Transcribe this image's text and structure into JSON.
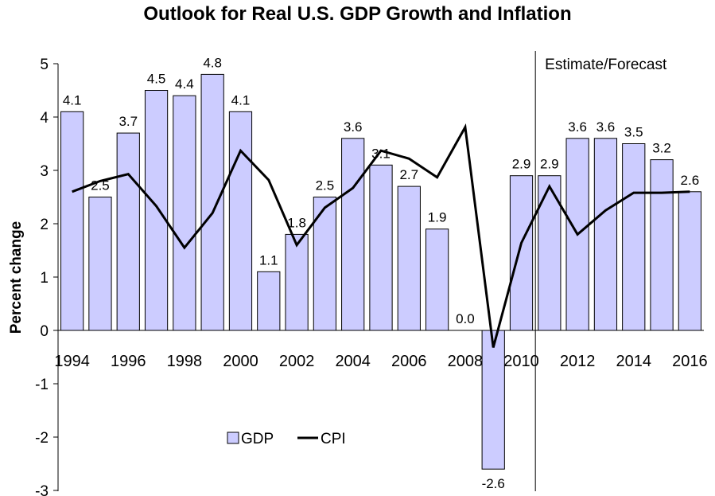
{
  "chart_data": {
    "type": "bar",
    "title": "Outlook for Real U.S. GDP Growth and Inflation",
    "ylabel": "Percent change",
    "xlabel": "",
    "ylim": [
      -3,
      5
    ],
    "yticks": [
      -3,
      -2,
      -1,
      0,
      1,
      2,
      3,
      4,
      5
    ],
    "x": [
      1994,
      1995,
      1996,
      1997,
      1998,
      1999,
      2000,
      2001,
      2002,
      2003,
      2004,
      2005,
      2006,
      2007,
      2008,
      2009,
      2010,
      2011,
      2012,
      2013,
      2014,
      2015,
      2016
    ],
    "xtick_labels": [
      "1994",
      "1996",
      "1998",
      "2000",
      "2002",
      "2004",
      "2006",
      "2008",
      "2010",
      "2012",
      "2014",
      "2016"
    ],
    "series": [
      {
        "name": "GDP",
        "kind": "bar",
        "color": "#ccccff",
        "values": [
          4.1,
          2.5,
          3.7,
          4.5,
          4.4,
          4.8,
          4.1,
          1.1,
          1.8,
          2.5,
          3.6,
          3.1,
          2.7,
          1.9,
          0.0,
          -2.6,
          2.9,
          2.9,
          3.6,
          3.6,
          3.5,
          3.2,
          2.6
        ],
        "labels": [
          "4.1",
          "2.5",
          "3.7",
          "4.5",
          "4.4",
          "4.8",
          "4.1",
          "1.1",
          "1.8",
          "2.5",
          "3.6",
          "3.1",
          "2.7",
          "1.9",
          "0.0",
          "-2.6",
          "2.9",
          "2.9",
          "3.6",
          "3.6",
          "3.5",
          "3.2",
          "2.6"
        ]
      },
      {
        "name": "CPI",
        "kind": "line",
        "color": "#000000",
        "values": [
          2.6,
          2.8,
          2.93,
          2.33,
          1.55,
          2.2,
          3.37,
          2.82,
          1.6,
          2.3,
          2.67,
          3.37,
          3.22,
          2.87,
          3.81,
          -0.32,
          1.64,
          2.7,
          1.8,
          2.25,
          2.58,
          2.58,
          2.6
        ]
      }
    ],
    "legend": {
      "placement": "bottom-center"
    },
    "annotation": {
      "text": "Estimate/Forecast",
      "divider_after": 2010
    },
    "grid": false
  }
}
